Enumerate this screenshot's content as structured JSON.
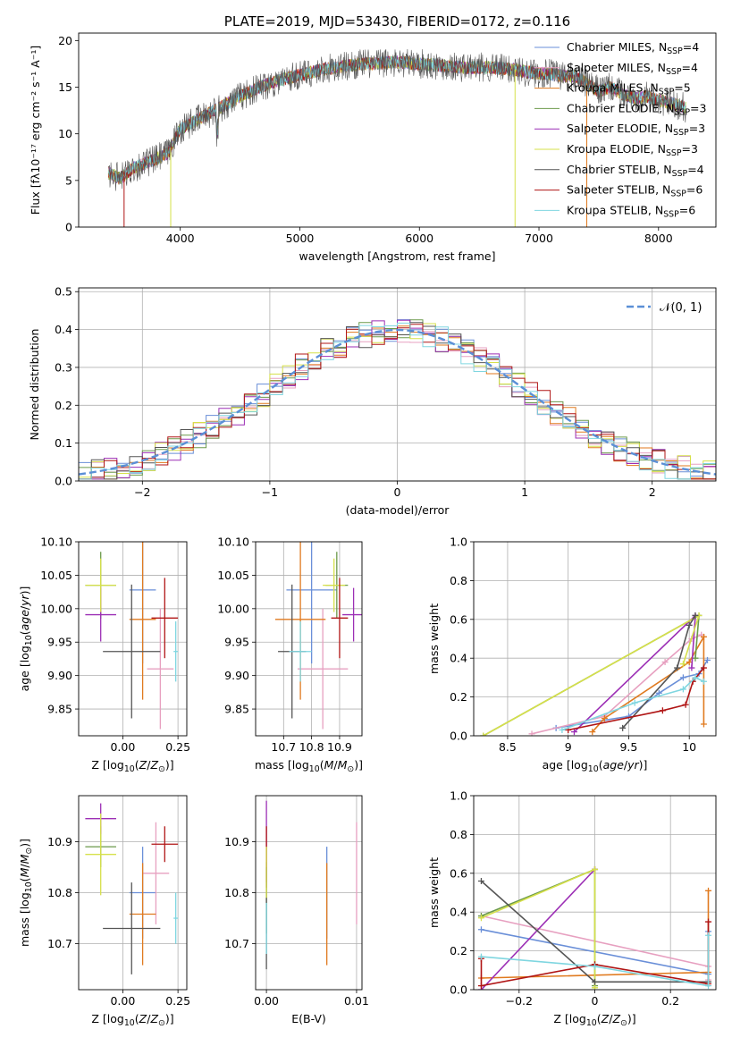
{
  "chart_data": [
    {
      "id": "spectrum",
      "type": "line",
      "title": "PLATE=2019, MJD=53430, FIBERID=0172, z=0.116",
      "xlabel": "wavelength [Angstrom, rest frame]",
      "ylabel": "Flux [fλ10⁻¹⁷ erg cm⁻² s⁻¹ A⁻¹]",
      "xlim": [
        3150,
        8480
      ],
      "ylim": [
        0,
        20.8
      ],
      "xticks": [
        4000,
        5000,
        6000,
        7000,
        8000
      ],
      "yticks": [
        0,
        5,
        10,
        15,
        20
      ],
      "grid": false,
      "legend_position": "top-right",
      "continuum": {
        "x": [
          3400,
          3500,
          3600,
          3700,
          3800,
          3900,
          3950,
          4000,
          4100,
          4200,
          4300,
          4400,
          4500,
          4600,
          4700,
          4800,
          4900,
          5000,
          5100,
          5200,
          5300,
          5400,
          5500,
          5600,
          5700,
          5800,
          5900,
          6000,
          6100,
          6200,
          6300,
          6400,
          6500,
          6600,
          6700,
          6800,
          6900,
          7000,
          7100,
          7200,
          7300,
          7400,
          7500,
          7600,
          7700,
          7800,
          7900,
          8000,
          8100,
          8230
        ],
        "y": [
          5.8,
          5.2,
          6.3,
          6.8,
          7.3,
          8.0,
          9.3,
          10.5,
          11.2,
          11.9,
          12.6,
          13.3,
          14.0,
          14.6,
          15.2,
          15.6,
          16.0,
          16.3,
          16.6,
          16.9,
          17.1,
          17.3,
          17.5,
          17.5,
          17.6,
          17.7,
          17.6,
          17.5,
          17.4,
          17.3,
          17.2,
          17.1,
          17.1,
          17.1,
          17.0,
          16.9,
          16.6,
          16.5,
          16.4,
          16.2,
          16.2,
          15.4,
          14.6,
          15.0,
          14.2,
          13.8,
          14.0,
          13.6,
          13.3,
          12.8
        ]
      },
      "series": [
        {
          "name": "Chabrier MILES, N<sub>SSP</sub>=4",
          "color": "#6a8fd8"
        },
        {
          "name": "Salpeter MILES, N<sub>SSP</sub>=4",
          "color": "#e7a0c0"
        },
        {
          "name": "Kroupa MILES, N<sub>SSP</sub>=5",
          "color": "#e07a1f"
        },
        {
          "name": "Chabrier ELODIE, N<sub>SSP</sub>=3",
          "color": "#6b9a4b"
        },
        {
          "name": "Salpeter ELODIE, N<sub>SSP</sub>=3",
          "color": "#9c2fb5"
        },
        {
          "name": "Kroupa ELODIE, N<sub>SSP</sub>=3",
          "color": "#d6e04a"
        },
        {
          "name": "Chabrier STELIB, N<sub>SSP</sub>=4",
          "color": "#555555"
        },
        {
          "name": "Salpeter STELIB, N<sub>SSP</sub>=6",
          "color": "#b01515"
        },
        {
          "name": "Kroupa STELIB, N<sub>SSP</sub>=6",
          "color": "#7fd6e0"
        }
      ]
    },
    {
      "id": "residuals",
      "type": "line",
      "xlabel": "(data-model)/error",
      "ylabel": "Normed distribution",
      "xlim": [
        -2.5,
        2.5
      ],
      "ylim": [
        0,
        0.51
      ],
      "xticks": [
        -2,
        -1,
        0,
        1,
        2
      ],
      "yticks": [
        0.0,
        0.1,
        0.2,
        0.3,
        0.4,
        0.5
      ],
      "grid": true,
      "legend": "𝒩(0, 1)",
      "legend_position": "top-right",
      "gaussian": {
        "mean": 0,
        "sigma": 1,
        "color": "#5b8fd6"
      },
      "bin_width": 0.1
    },
    {
      "id": "age-vs-Z",
      "type": "scatter",
      "xlabel": "Z [log<sub>10</sub>(<i>Z</i>/<i>Z</i><sub>⊙</sub>)]",
      "ylabel": "age  [log<sub>10</sub>(<i>age</i>/<i>yr</i>)]",
      "xlim": [
        -0.2,
        0.29
      ],
      "ylim": [
        9.81,
        10.1
      ],
      "xticks": [
        0.0,
        0.25
      ],
      "xticklabels": [
        "0.00",
        "0.25"
      ],
      "yticks": [
        9.85,
        9.9,
        9.95,
        10.0,
        10.05,
        10.1
      ],
      "grid": true,
      "points": [
        {
          "x": 0.09,
          "y": 10.028,
          "xerr": 0.06,
          "yerr": 0.11,
          "color": "#6a8fd8"
        },
        {
          "x": 0.17,
          "y": 9.91,
          "xerr": 0.06,
          "yerr": 0.09,
          "color": "#e7a0c0"
        },
        {
          "x": 0.09,
          "y": 9.984,
          "xerr": 0.06,
          "yerr": 0.12,
          "color": "#e07a1f"
        },
        {
          "x": -0.1,
          "y": 10.035,
          "xerr": 0.07,
          "yerr": 0.05,
          "color": "#6b9a4b"
        },
        {
          "x": -0.1,
          "y": 9.991,
          "xerr": 0.07,
          "yerr": 0.04,
          "color": "#9c2fb5"
        },
        {
          "x": -0.1,
          "y": 10.035,
          "xerr": 0.07,
          "yerr": 0.04,
          "color": "#d6e04a"
        },
        {
          "x": 0.04,
          "y": 9.936,
          "xerr": 0.13,
          "yerr": 0.1,
          "color": "#555555"
        },
        {
          "x": 0.19,
          "y": 9.986,
          "xerr": 0.06,
          "yerr": 0.06,
          "color": "#b01515"
        },
        {
          "x": 0.24,
          "y": 9.936,
          "xerr": 0.01,
          "yerr": 0.045,
          "color": "#7fd6e0"
        }
      ]
    },
    {
      "id": "age-vs-mass",
      "type": "scatter",
      "xlabel": "mass [log<sub>10</sub>(<i>M</i>/<i>M</i><sub>⊙</sub>)]",
      "ylabel": "",
      "xlim": [
        10.6,
        10.98
      ],
      "ylim": [
        9.81,
        10.1
      ],
      "xticks": [
        10.7,
        10.8,
        10.9
      ],
      "yticks": [
        9.85,
        9.9,
        9.95,
        10.0,
        10.05,
        10.1
      ],
      "grid": true,
      "points": [
        {
          "x": 10.8,
          "y": 10.028,
          "xerr": 0.09,
          "yerr": 0.11,
          "color": "#6a8fd8"
        },
        {
          "x": 10.84,
          "y": 9.91,
          "xerr": 0.09,
          "yerr": 0.09,
          "color": "#e7a0c0"
        },
        {
          "x": 10.76,
          "y": 9.984,
          "xerr": 0.09,
          "yerr": 0.12,
          "color": "#e07a1f"
        },
        {
          "x": 10.89,
          "y": 10.035,
          "xerr": 0.04,
          "yerr": 0.05,
          "color": "#6b9a4b"
        },
        {
          "x": 10.95,
          "y": 9.991,
          "xerr": 0.04,
          "yerr": 0.04,
          "color": "#9c2fb5"
        },
        {
          "x": 10.88,
          "y": 10.035,
          "xerr": 0.04,
          "yerr": 0.04,
          "color": "#d6e04a"
        },
        {
          "x": 10.73,
          "y": 9.936,
          "xerr": 0.05,
          "yerr": 0.1,
          "color": "#555555"
        },
        {
          "x": 10.9,
          "y": 9.986,
          "xerr": 0.03,
          "yerr": 0.06,
          "color": "#b01515"
        },
        {
          "x": 10.76,
          "y": 9.936,
          "xerr": 0.04,
          "yerr": 0.045,
          "color": "#7fd6e0"
        }
      ]
    },
    {
      "id": "weight-vs-age",
      "type": "line",
      "xlabel": "age  [log<sub>10</sub>(<i>age</i>/<i>yr</i>)]",
      "ylabel": "mass weight",
      "xlim": [
        8.22,
        10.22
      ],
      "ylim": [
        0,
        1.0
      ],
      "xticks": [
        8.5,
        9.0,
        9.5,
        10.0
      ],
      "yticks": [
        0.0,
        0.2,
        0.4,
        0.6,
        0.8,
        1.0
      ],
      "grid": true,
      "series": [
        {
          "color": "#6a8fd8",
          "x": [
            8.9,
            9.5,
            9.75,
            9.95,
            10.08,
            10.15
          ],
          "y": [
            0.04,
            0.1,
            0.22,
            0.3,
            0.32,
            0.39
          ]
        },
        {
          "color": "#e7a0c0",
          "x": [
            8.7,
            9.3,
            9.8,
            10.02,
            10.1
          ],
          "y": [
            0.01,
            0.1,
            0.38,
            0.5,
            0.52
          ]
        },
        {
          "color": "#e07a1f",
          "x": [
            9.2,
            9.3,
            10.0,
            10.12,
            10.12
          ],
          "y": [
            0.02,
            0.09,
            0.38,
            0.51,
            0.06
          ]
        },
        {
          "color": "#6b9a4b",
          "x": [
            8.3,
            10.08,
            10.05
          ],
          "y": [
            0.0,
            0.62,
            0.4
          ]
        },
        {
          "color": "#9c2fb5",
          "x": [
            9.05,
            10.05,
            10.02
          ],
          "y": [
            0.02,
            0.62,
            0.35
          ]
        },
        {
          "color": "#d6e04a",
          "x": [
            8.3,
            10.08,
            9.95
          ],
          "y": [
            0.0,
            0.62,
            0.37
          ]
        },
        {
          "color": "#555555",
          "x": [
            9.45,
            9.9,
            10.0,
            10.05
          ],
          "y": [
            0.04,
            0.35,
            0.57,
            0.62
          ]
        },
        {
          "color": "#b01515",
          "x": [
            9.0,
            9.78,
            9.97,
            10.03,
            10.12
          ],
          "y": [
            0.03,
            0.13,
            0.16,
            0.28,
            0.35
          ]
        },
        {
          "color": "#7fd6e0",
          "x": [
            8.95,
            9.55,
            9.95,
            10.05,
            10.12
          ],
          "y": [
            0.03,
            0.17,
            0.24,
            0.3,
            0.28
          ]
        }
      ]
    },
    {
      "id": "mass-vs-Z",
      "type": "scatter",
      "xlabel": "Z [log<sub>10</sub>(<i>Z</i>/<i>Z</i><sub>⊙</sub>)]",
      "ylabel": "mass [log<sub>10</sub>(<i>M</i>/<i>M</i><sub>⊙</sub>)]",
      "xlim": [
        -0.2,
        0.29
      ],
      "ylim": [
        10.61,
        10.99
      ],
      "xticks": [
        0.0,
        0.25
      ],
      "xticklabels": [
        "0.00",
        "0.25"
      ],
      "yticks": [
        10.7,
        10.8,
        10.9
      ],
      "grid": true,
      "points": [
        {
          "x": 0.09,
          "y": 10.8,
          "xerr": 0.06,
          "yerr": 0.09,
          "color": "#6a8fd8"
        },
        {
          "x": 0.15,
          "y": 10.838,
          "xerr": 0.06,
          "yerr": 0.1,
          "color": "#e7a0c0"
        },
        {
          "x": 0.09,
          "y": 10.758,
          "xerr": 0.06,
          "yerr": 0.1,
          "color": "#e07a1f"
        },
        {
          "x": -0.1,
          "y": 10.89,
          "xerr": 0.07,
          "yerr": 0.04,
          "color": "#6b9a4b"
        },
        {
          "x": -0.1,
          "y": 10.945,
          "xerr": 0.07,
          "yerr": 0.03,
          "color": "#9c2fb5"
        },
        {
          "x": -0.1,
          "y": 10.875,
          "xerr": 0.07,
          "yerr": 0.08,
          "color": "#d6e04a"
        },
        {
          "x": 0.04,
          "y": 10.73,
          "xerr": 0.13,
          "yerr": 0.09,
          "color": "#555555"
        },
        {
          "x": 0.19,
          "y": 10.895,
          "xerr": 0.06,
          "yerr": 0.035,
          "color": "#b01515"
        },
        {
          "x": 0.24,
          "y": 10.75,
          "xerr": 0.01,
          "yerr": 0.05,
          "color": "#7fd6e0"
        }
      ]
    },
    {
      "id": "mass-vs-ebv",
      "type": "scatter",
      "xlabel": "E(B-V)",
      "ylabel": "",
      "xlim": [
        -0.0012,
        0.0106
      ],
      "ylim": [
        10.61,
        10.99
      ],
      "xticks": [
        0.0,
        0.01
      ],
      "xticklabels": [
        "0.00",
        "0.01"
      ],
      "yticks": [
        10.7,
        10.8,
        10.9
      ],
      "grid": true,
      "points": [
        {
          "x": 0.0,
          "y": 10.79,
          "yerr": 0.07,
          "color": "#6b9a4b"
        },
        {
          "x": 0.0,
          "y": 10.9,
          "yerr": 0.08,
          "color": "#9c2fb5"
        },
        {
          "x": 0.0,
          "y": 10.87,
          "yerr": 0.06,
          "color": "#b01515"
        },
        {
          "x": 0.0,
          "y": 10.75,
          "yerr": 0.1,
          "color": "#555555"
        },
        {
          "x": 0.0,
          "y": 10.84,
          "yerr": 0.05,
          "color": "#d6e04a"
        },
        {
          "x": 0.0,
          "y": 10.73,
          "yerr": 0.05,
          "color": "#7fd6e0"
        },
        {
          "x": 0.0067,
          "y": 10.8,
          "yerr": 0.09,
          "color": "#6a8fd8"
        },
        {
          "x": 0.0067,
          "y": 10.758,
          "yerr": 0.1,
          "color": "#e07a1f"
        },
        {
          "x": 0.01,
          "y": 10.838,
          "yerr": 0.1,
          "color": "#e7a0c0"
        }
      ]
    },
    {
      "id": "weight-vs-Z",
      "type": "line",
      "xlabel": "Z [log<sub>10</sub>(<i>Z</i>/<i>Z</i><sub>⊙</sub>)]",
      "ylabel": "mass weight",
      "xlim": [
        -0.32,
        0.32
      ],
      "ylim": [
        0,
        1.0
      ],
      "xticks": [
        -0.2,
        0.0,
        0.2
      ],
      "yticks": [
        0.0,
        0.2,
        0.4,
        0.6,
        0.8,
        1.0
      ],
      "grid": true,
      "series": [
        {
          "color": "#6a8fd8",
          "x": [
            -0.3,
            0.3,
            0.3
          ],
          "y": [
            0.31,
            0.08,
            0.3
          ]
        },
        {
          "color": "#e7a0c0",
          "x": [
            -0.3,
            0.3,
            0.3
          ],
          "y": [
            0.38,
            0.12,
            0.05
          ]
        },
        {
          "color": "#e07a1f",
          "x": [
            -0.3,
            0.3,
            0.3
          ],
          "y": [
            0.06,
            0.09,
            0.51
          ]
        },
        {
          "color": "#6b9a4b",
          "x": [
            -0.3,
            0.0,
            0.0
          ],
          "y": [
            0.38,
            0.62,
            0.02
          ]
        },
        {
          "color": "#9c2fb5",
          "x": [
            -0.3,
            0.0
          ],
          "y": [
            0.0,
            0.62
          ]
        },
        {
          "color": "#d6e04a",
          "x": [
            -0.3,
            0.0,
            0.0
          ],
          "y": [
            0.37,
            0.62,
            0.01
          ]
        },
        {
          "color": "#555555",
          "x": [
            -0.3,
            0.0,
            0.3
          ],
          "y": [
            0.56,
            0.04,
            0.04
          ]
        },
        {
          "color": "#b01515",
          "x": [
            -0.3,
            -0.3,
            0.0,
            0.3,
            0.3
          ],
          "y": [
            0.16,
            0.02,
            0.13,
            0.03,
            0.35
          ]
        },
        {
          "color": "#7fd6e0",
          "x": [
            -0.3,
            0.0,
            0.3,
            0.3
          ],
          "y": [
            0.17,
            0.12,
            0.02,
            0.28
          ]
        }
      ]
    }
  ]
}
